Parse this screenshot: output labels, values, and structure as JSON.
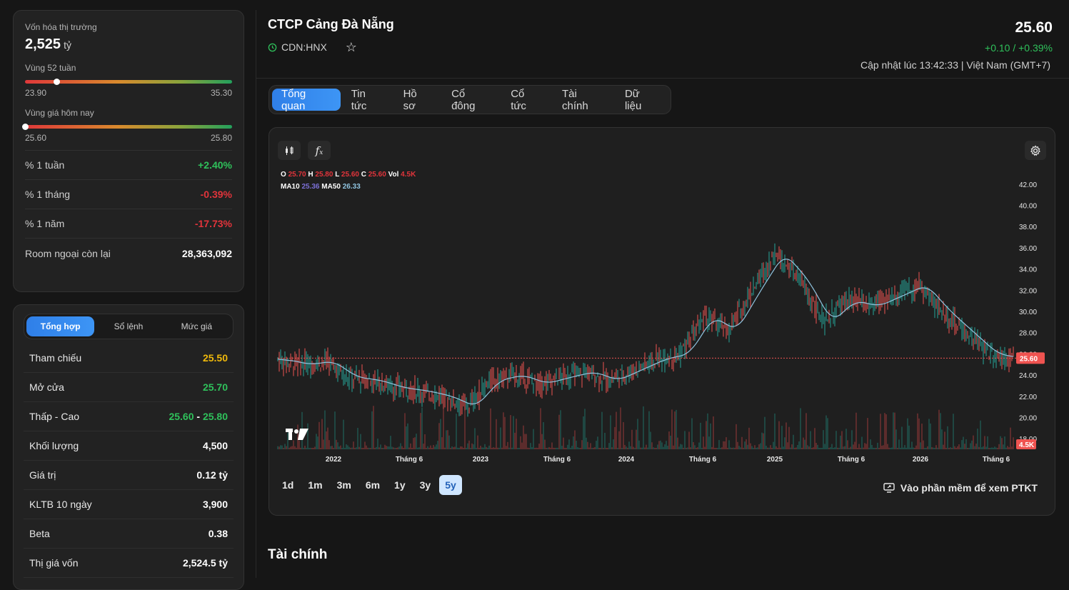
{
  "overview": {
    "market_cap_label": "Vốn hóa thị trường",
    "market_cap_value": "2,525",
    "market_cap_unit": "tỷ",
    "range52": {
      "label": "Vùng 52 tuần",
      "low": "23.90",
      "high": "35.30",
      "position": 0.15
    },
    "range_today": {
      "label": "Vùng giá hôm nay",
      "low": "25.60",
      "high": "25.80",
      "position": 0.0
    },
    "stats": [
      {
        "label": "% 1 tuần",
        "value": "+2.40%",
        "tone": "pos"
      },
      {
        "label": "% 1 tháng",
        "value": "-0.39%",
        "tone": "neg"
      },
      {
        "label": "% 1 năm",
        "value": "-17.73%",
        "tone": "neg"
      },
      {
        "label": "Room ngoại còn lại",
        "value": "28,363,092",
        "tone": "wht"
      }
    ]
  },
  "detail_tabs": [
    "Tổng hợp",
    "Sổ lệnh",
    "Mức giá"
  ],
  "detail_rows": [
    {
      "label": "Tham chiếu",
      "value": "25.50",
      "tone": "yel"
    },
    {
      "label": "Mở cửa",
      "value": "25.70",
      "tone": "pos"
    },
    {
      "label": "Thấp - Cao",
      "low": "25.60",
      "sep": "-",
      "high": "25.80"
    },
    {
      "label": "Khối lượng",
      "value": "4,500",
      "tone": "wht"
    },
    {
      "label": "Giá trị",
      "value": "0.12 tỷ",
      "tone": "wht"
    },
    {
      "label": "KLTB 10 ngày",
      "value": "3,900",
      "tone": "wht"
    },
    {
      "label": "Beta",
      "value": "0.38",
      "tone": "wht"
    },
    {
      "label": "Thị giá vốn",
      "value": "2,524.5 tỷ",
      "tone": "wht"
    }
  ],
  "header": {
    "company": "CTCP Cảng Đà Nẵng",
    "ticker": "CDN:HNX",
    "price": "25.60",
    "change": "+0.10 / +0.39%",
    "updated": "Cập nhật lúc 13:42:33 | Việt Nam (GMT+7)"
  },
  "tabs": [
    "Tổng quan",
    "Tin tức",
    "Hồ sơ",
    "Cổ đông",
    "Cổ tức",
    "Tài chính",
    "Dữ liệu"
  ],
  "chart_legend": {
    "o_label": "O",
    "o": "25.70",
    "h_label": "H",
    "h": "25.80",
    "l_label": "L",
    "l": "25.60",
    "c_label": "C",
    "c": "25.60",
    "vol_label": "Vol",
    "vol": "4.5K",
    "ma10_label": "MA10",
    "ma10": "25.36",
    "ma50_label": "MA50",
    "ma50": "26.33"
  },
  "chart_data": {
    "type": "line",
    "y_ticks": [
      "42.00",
      "40.00",
      "38.00",
      "36.00",
      "34.00",
      "32.00",
      "30.00",
      "28.00",
      "26.00",
      "24.00",
      "22.00",
      "20.00",
      "18.00"
    ],
    "ylim": [
      16,
      43
    ],
    "x_ticks": [
      "2022",
      "Tháng 6",
      "2023",
      "Tháng 6",
      "2024",
      "Tháng 6",
      "2025",
      "Tháng 6",
      "2026",
      "Tháng 6"
    ],
    "current_price_label": "25.60",
    "current_volume_label": "4.5K",
    "series": [
      {
        "name": "",
        "x": [
          "2021-09",
          "2021-11",
          "2022-01",
          "2022-03",
          "2022-05",
          "2022-07",
          "2022-09",
          "2022-11",
          "2023-01",
          "2023-03",
          "2023-05",
          "2023-07",
          "2023-09",
          "2023-11",
          "2024-01",
          "2024-03",
          "2024-05",
          "2024-07",
          "2024-09",
          "2024-11",
          "2025-01",
          "2025-02",
          "2025-03",
          "2025-05",
          "2025-07",
          "2025-09",
          "2025-11",
          "2026-01",
          "2026-03",
          "2026-05",
          "2026-07",
          "2026-08"
        ],
        "values": [
          25.5,
          25.0,
          25.3,
          23.8,
          23.5,
          22.8,
          22.5,
          22.0,
          21.0,
          23.5,
          24.0,
          23.2,
          23.8,
          24.3,
          23.5,
          24.5,
          25.5,
          26.0,
          29.5,
          28.2,
          32.0,
          35.5,
          33.0,
          29.0,
          31.0,
          30.5,
          31.5,
          32.5,
          30.0,
          28.0,
          26.0,
          25.6
        ]
      }
    ]
  },
  "periods": [
    "1d",
    "1m",
    "3m",
    "6m",
    "1y",
    "3y",
    "5y"
  ],
  "active_period": "5y",
  "ptkt_label": "Vào phần mềm để xem PTKT",
  "finance_title": "Tài chính",
  "colors": {
    "accent": "#2f7fe8",
    "up": "#2fc15b",
    "down": "#e2343b",
    "ref": "#f0b90b",
    "ma50": "#8fc3df"
  }
}
